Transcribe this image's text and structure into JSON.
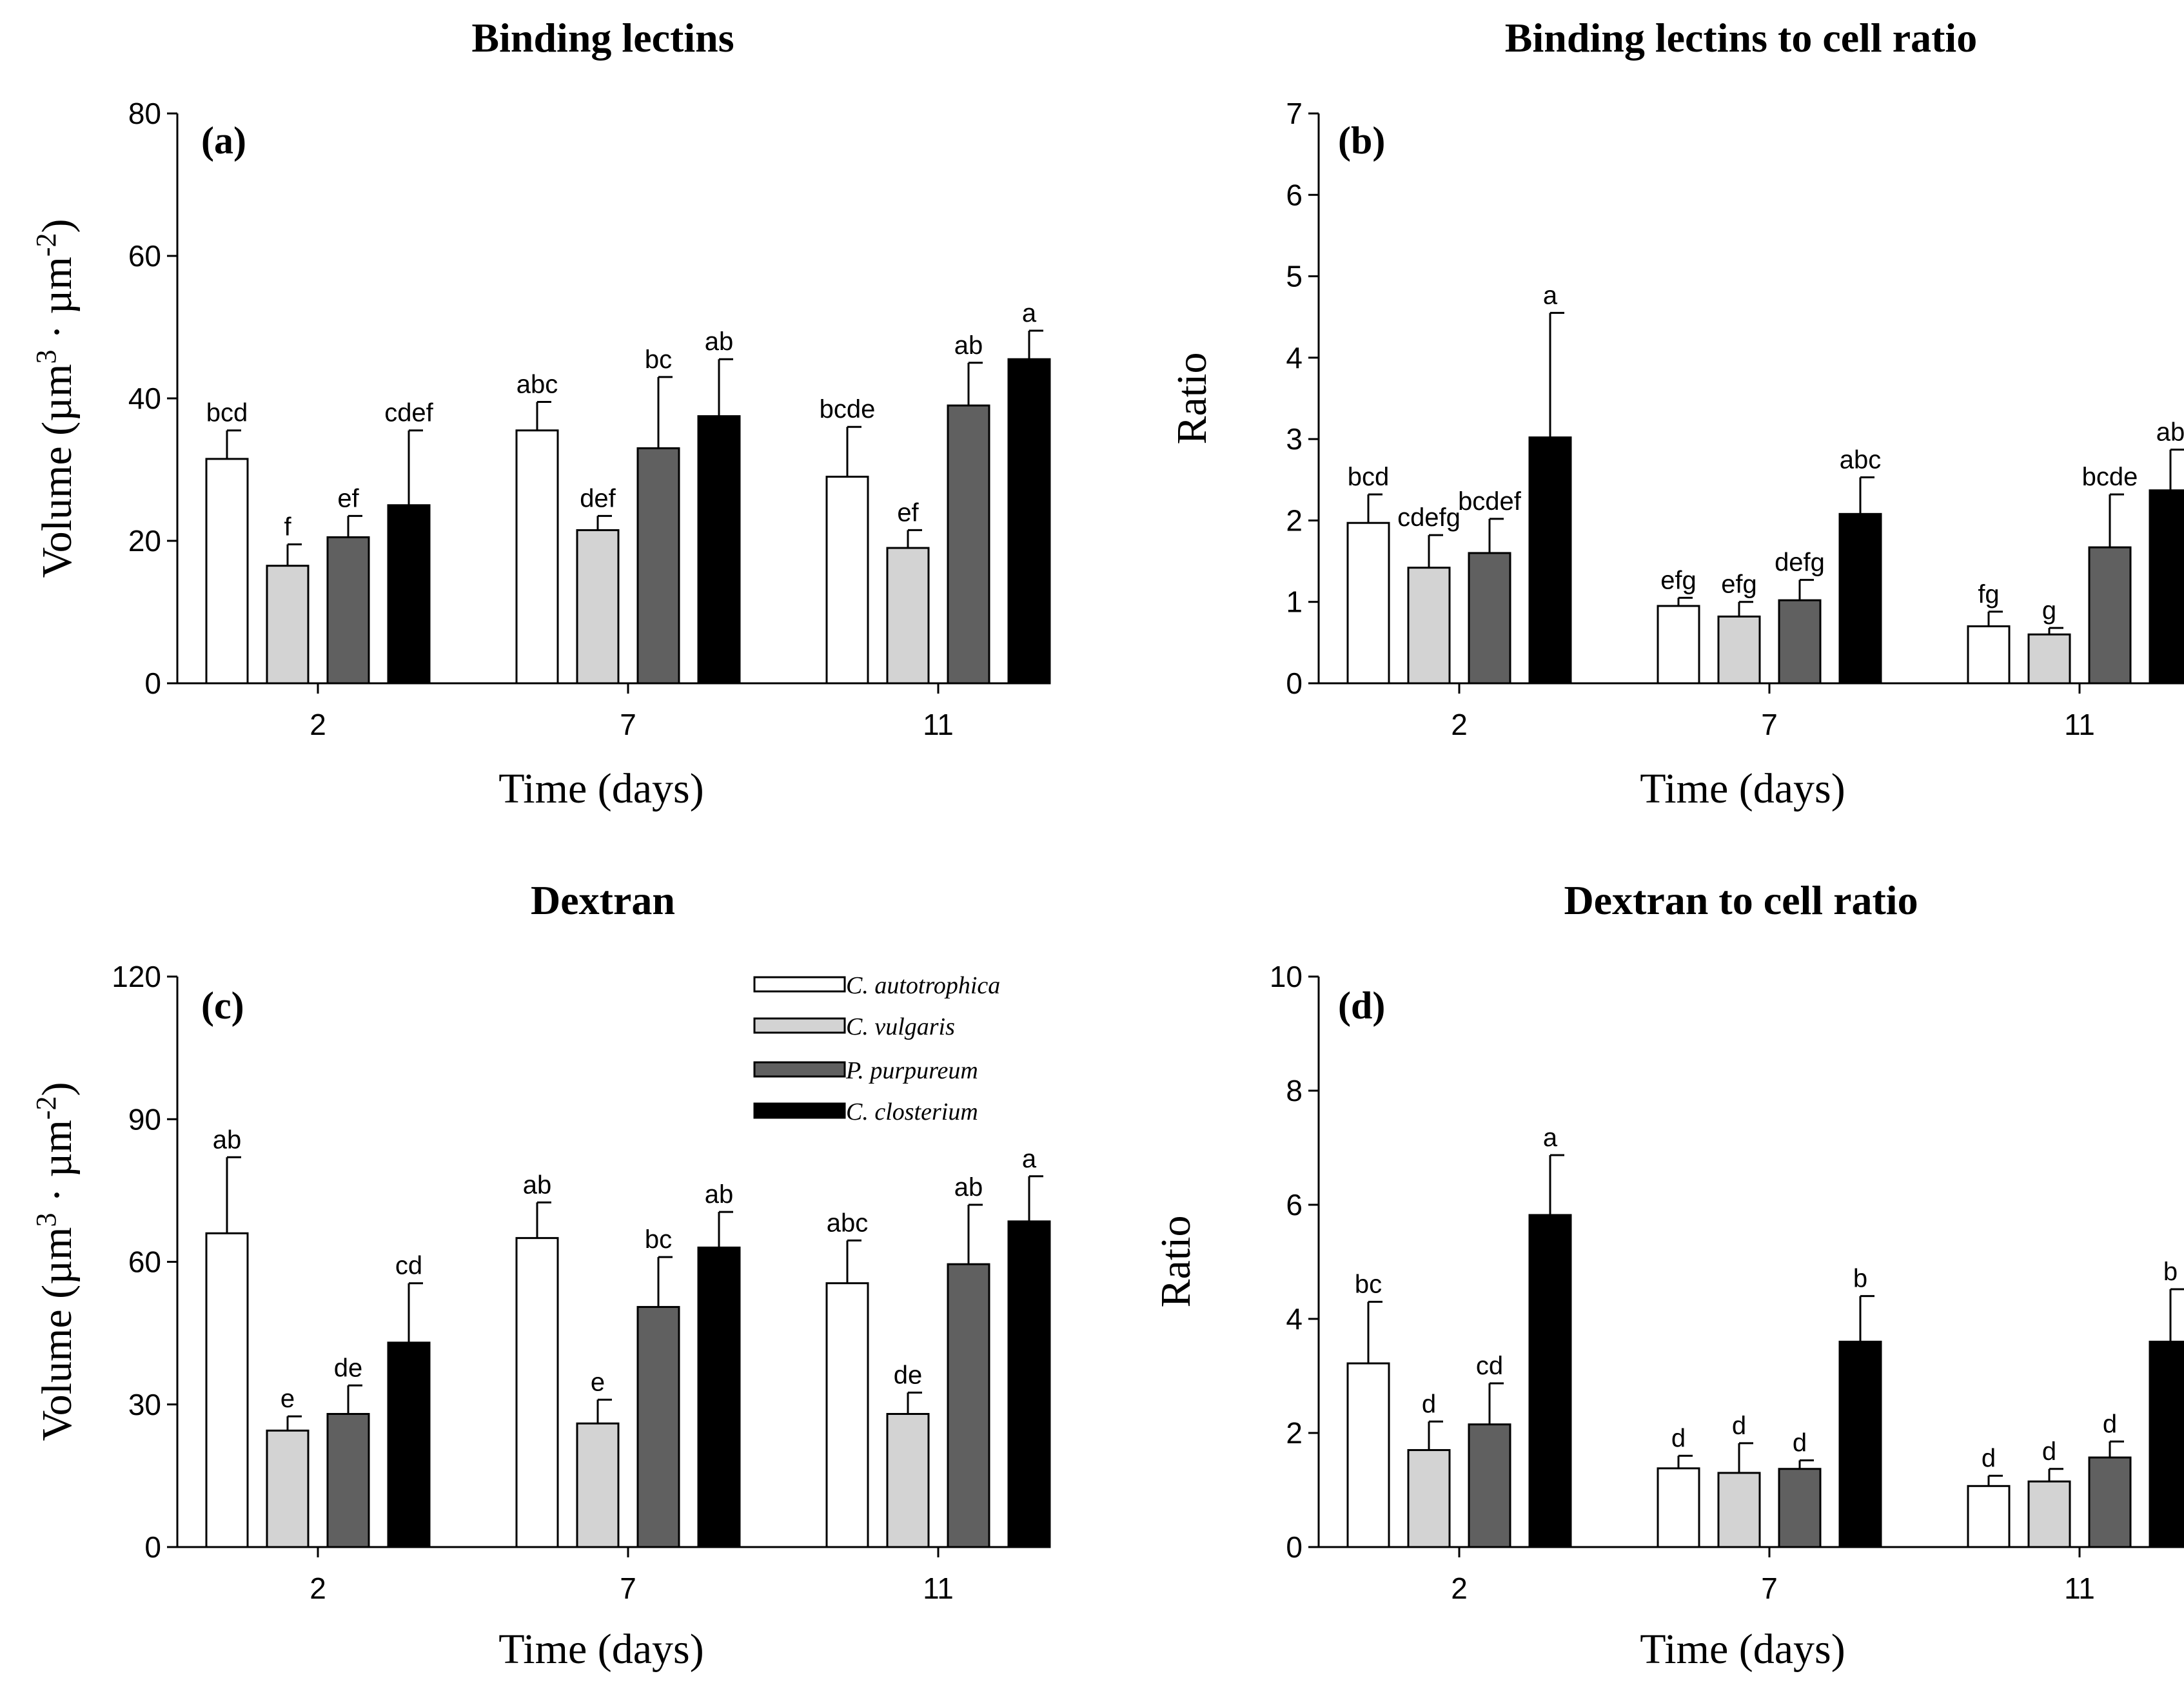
{
  "legend": {
    "series": [
      {
        "name": "C. autotrophica",
        "color": "#ffffff"
      },
      {
        "name": "C. vulgaris",
        "color": "#d3d3d3"
      },
      {
        "name": "P. purpureum",
        "color": "#606060"
      },
      {
        "name": "C. closterium",
        "color": "#000000"
      }
    ]
  },
  "chart_data": [
    {
      "type": "bar",
      "tag": "(a)",
      "title": "Binding lectins",
      "xlabel": "Time (days)",
      "ylabel": "Volume (µm",
      "ylabel_sup1": "3",
      "ylabel_mid": " · µm",
      "ylabel_sup2": "-2",
      "ylabel_end": ")",
      "ylim": [
        0,
        80
      ],
      "yticks": [
        "0",
        "20",
        "40",
        "60",
        "80"
      ],
      "categories": [
        "2",
        "7",
        "11"
      ],
      "series": [
        {
          "name": "C. autotrophica",
          "values": [
            31.5,
            35.5,
            29
          ],
          "errors": [
            4,
            4,
            7
          ],
          "labels": [
            "bcd",
            "abc",
            "bcde"
          ]
        },
        {
          "name": "C. vulgaris",
          "values": [
            16.5,
            21.5,
            19
          ],
          "errors": [
            3,
            2,
            2.5
          ],
          "labels": [
            "f",
            "def",
            "ef"
          ]
        },
        {
          "name": "P. purpureum",
          "values": [
            20.5,
            33,
            39
          ],
          "errors": [
            3,
            10,
            6
          ],
          "labels": [
            "ef",
            "bc",
            "ab"
          ]
        },
        {
          "name": "C. closterium",
          "values": [
            25,
            37.5,
            45.5
          ],
          "errors": [
            10.5,
            8,
            4
          ],
          "labels": [
            "cdef",
            "ab",
            "a"
          ]
        }
      ]
    },
    {
      "type": "bar",
      "tag": "(b)",
      "title": "Binding lectins to cell ratio",
      "xlabel": "Time (days)",
      "ylabel": "Ratio",
      "ylim": [
        0,
        7
      ],
      "yticks": [
        "0",
        "1",
        "2",
        "3",
        "4",
        "5",
        "6",
        "7"
      ],
      "categories": [
        "2",
        "7",
        "11"
      ],
      "series": [
        {
          "name": "C. autotrophica",
          "values": [
            1.97,
            0.95,
            0.7
          ],
          "errors": [
            0.35,
            0.1,
            0.18
          ],
          "labels": [
            "bcd",
            "efg",
            "fg"
          ]
        },
        {
          "name": "C. vulgaris",
          "values": [
            1.42,
            0.82,
            0.6
          ],
          "errors": [
            0.4,
            0.18,
            0.08
          ],
          "labels": [
            "cdefg",
            "efg",
            "g"
          ]
        },
        {
          "name": "P. purpureum",
          "values": [
            1.6,
            1.02,
            1.67
          ],
          "errors": [
            0.42,
            0.25,
            0.65
          ],
          "labels": [
            "bcdef",
            "defg",
            "bcde"
          ]
        },
        {
          "name": "C. closterium",
          "values": [
            3.02,
            2.08,
            2.37
          ],
          "errors": [
            1.53,
            0.45,
            0.5
          ],
          "labels": [
            "a",
            "abc",
            "ab"
          ]
        }
      ]
    },
    {
      "type": "bar",
      "tag": "(c)",
      "title": "Dextran",
      "xlabel": "Time (days)",
      "ylabel": "Volume (µm",
      "ylabel_sup1": "3",
      "ylabel_mid": " · µm",
      "ylabel_sup2": "-2",
      "ylabel_end": ")",
      "ylim": [
        0,
        120
      ],
      "yticks": [
        "0",
        "30",
        "60",
        "90",
        "120"
      ],
      "categories": [
        "2",
        "7",
        "11"
      ],
      "series": [
        {
          "name": "C. autotrophica",
          "values": [
            66,
            65,
            55.5
          ],
          "errors": [
            16,
            7.5,
            9
          ],
          "labels": [
            "ab",
            "ab",
            "abc"
          ]
        },
        {
          "name": "C. vulgaris",
          "values": [
            24.5,
            26,
            28
          ],
          "errors": [
            3,
            5,
            4.5
          ],
          "labels": [
            "e",
            "e",
            "de"
          ]
        },
        {
          "name": "P. purpureum",
          "values": [
            28,
            50.5,
            59.5
          ],
          "errors": [
            6,
            10.5,
            12.5
          ],
          "labels": [
            "de",
            "bc",
            "ab"
          ]
        },
        {
          "name": "C. closterium",
          "values": [
            43,
            63,
            68.5
          ],
          "errors": [
            12.5,
            7.5,
            9.5
          ],
          "labels": [
            "cd",
            "ab",
            "a"
          ]
        }
      ]
    },
    {
      "type": "bar",
      "tag": "(d)",
      "title": "Dextran to cell ratio",
      "xlabel": "Time (days)",
      "ylabel": "Ratio",
      "ylim": [
        0,
        10
      ],
      "yticks": [
        "0",
        "2",
        "4",
        "6",
        "8",
        "10"
      ],
      "categories": [
        "2",
        "7",
        "11"
      ],
      "series": [
        {
          "name": "C. autotrophica",
          "values": [
            3.22,
            1.38,
            1.07
          ],
          "errors": [
            1.08,
            0.22,
            0.18
          ],
          "labels": [
            "bc",
            "d",
            "d"
          ]
        },
        {
          "name": "C. vulgaris",
          "values": [
            1.7,
            1.3,
            1.15
          ],
          "errors": [
            0.5,
            0.52,
            0.22
          ],
          "labels": [
            "d",
            "d",
            "d"
          ]
        },
        {
          "name": "P. purpureum",
          "values": [
            2.15,
            1.37,
            1.57
          ],
          "errors": [
            0.72,
            0.15,
            0.28
          ],
          "labels": [
            "cd",
            "d",
            "d"
          ]
        },
        {
          "name": "C. closterium",
          "values": [
            5.82,
            3.6,
            3.6
          ],
          "errors": [
            1.05,
            0.8,
            0.92
          ],
          "labels": [
            "a",
            "b",
            "b"
          ]
        }
      ]
    }
  ]
}
